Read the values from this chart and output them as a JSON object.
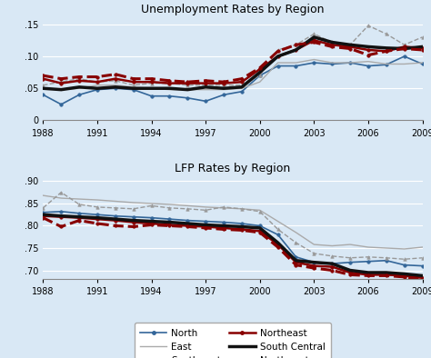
{
  "years": [
    1988,
    1989,
    1990,
    1991,
    1992,
    1993,
    1994,
    1995,
    1996,
    1997,
    1998,
    1999,
    2000,
    2001,
    2002,
    2003,
    2004,
    2005,
    2006,
    2007,
    2008,
    2009
  ],
  "unemp": {
    "North": [
      0.04,
      0.025,
      0.04,
      0.048,
      0.05,
      0.048,
      0.038,
      0.038,
      0.035,
      0.03,
      0.04,
      0.045,
      0.07,
      0.085,
      0.085,
      0.09,
      0.088,
      0.09,
      0.085,
      0.087,
      0.1,
      0.088
    ],
    "East": [
      0.05,
      0.048,
      0.05,
      0.055,
      0.055,
      0.052,
      0.05,
      0.048,
      0.048,
      0.048,
      0.048,
      0.05,
      0.06,
      0.09,
      0.09,
      0.095,
      0.09,
      0.09,
      0.092,
      0.088,
      0.088,
      0.09
    ],
    "Southwest": [
      0.055,
      0.06,
      0.065,
      0.06,
      0.062,
      0.055,
      0.058,
      0.058,
      0.055,
      0.055,
      0.055,
      0.055,
      0.07,
      0.11,
      0.118,
      0.135,
      0.122,
      0.118,
      0.148,
      0.135,
      0.118,
      0.13
    ],
    "Northeast": [
      0.065,
      0.058,
      0.062,
      0.06,
      0.065,
      0.06,
      0.06,
      0.058,
      0.058,
      0.058,
      0.058,
      0.06,
      0.08,
      0.1,
      0.11,
      0.125,
      0.118,
      0.115,
      0.11,
      0.108,
      0.115,
      0.113
    ],
    "SouthCentral": [
      0.05,
      0.048,
      0.052,
      0.05,
      0.052,
      0.05,
      0.05,
      0.05,
      0.048,
      0.052,
      0.05,
      0.052,
      0.075,
      0.1,
      0.11,
      0.13,
      0.122,
      0.118,
      0.115,
      0.113,
      0.112,
      0.115
    ],
    "Northwest": [
      0.07,
      0.065,
      0.068,
      0.068,
      0.072,
      0.065,
      0.065,
      0.062,
      0.06,
      0.062,
      0.06,
      0.065,
      0.082,
      0.108,
      0.118,
      0.122,
      0.115,
      0.112,
      0.102,
      0.108,
      0.112,
      0.11
    ]
  },
  "lfp": {
    "North": [
      0.83,
      0.832,
      0.828,
      0.825,
      0.822,
      0.82,
      0.818,
      0.815,
      0.812,
      0.81,
      0.808,
      0.805,
      0.8,
      0.78,
      0.73,
      0.718,
      0.715,
      0.718,
      0.72,
      0.722,
      0.712,
      0.71
    ],
    "East": [
      0.868,
      0.862,
      0.86,
      0.858,
      0.855,
      0.852,
      0.85,
      0.848,
      0.845,
      0.842,
      0.84,
      0.838,
      0.835,
      0.81,
      0.785,
      0.758,
      0.755,
      0.758,
      0.752,
      0.75,
      0.748,
      0.752
    ],
    "Southwest": [
      0.84,
      0.875,
      0.848,
      0.842,
      0.84,
      0.838,
      0.845,
      0.84,
      0.838,
      0.835,
      0.842,
      0.838,
      0.832,
      0.792,
      0.762,
      0.738,
      0.732,
      0.728,
      0.73,
      0.728,
      0.725,
      0.728
    ],
    "Northeast": [
      0.822,
      0.82,
      0.818,
      0.815,
      0.812,
      0.808,
      0.805,
      0.802,
      0.8,
      0.798,
      0.795,
      0.792,
      0.788,
      0.758,
      0.718,
      0.71,
      0.708,
      0.695,
      0.69,
      0.69,
      0.688,
      0.683
    ],
    "SouthCentral": [
      0.825,
      0.822,
      0.82,
      0.818,
      0.815,
      0.812,
      0.81,
      0.808,
      0.805,
      0.802,
      0.8,
      0.798,
      0.795,
      0.762,
      0.722,
      0.718,
      0.715,
      0.7,
      0.695,
      0.695,
      0.692,
      0.688
    ],
    "Northwest": [
      0.818,
      0.798,
      0.812,
      0.805,
      0.8,
      0.798,
      0.802,
      0.8,
      0.798,
      0.795,
      0.792,
      0.79,
      0.785,
      0.752,
      0.712,
      0.705,
      0.7,
      0.69,
      0.688,
      0.688,
      0.685,
      0.68
    ]
  },
  "bg_color": "#d9e8f5",
  "title1": "Unemployment Rates by Region",
  "title2": "LFP Rates by Region",
  "unemp_ylim": [
    0,
    0.16
  ],
  "unemp_yticks": [
    0,
    0.05,
    0.1,
    0.15
  ],
  "lfp_ylim": [
    0.68,
    0.91
  ],
  "lfp_yticks": [
    0.7,
    0.75,
    0.8,
    0.85,
    0.9
  ],
  "xticks": [
    1988,
    1991,
    1994,
    1997,
    2000,
    2003,
    2006,
    2009
  ]
}
